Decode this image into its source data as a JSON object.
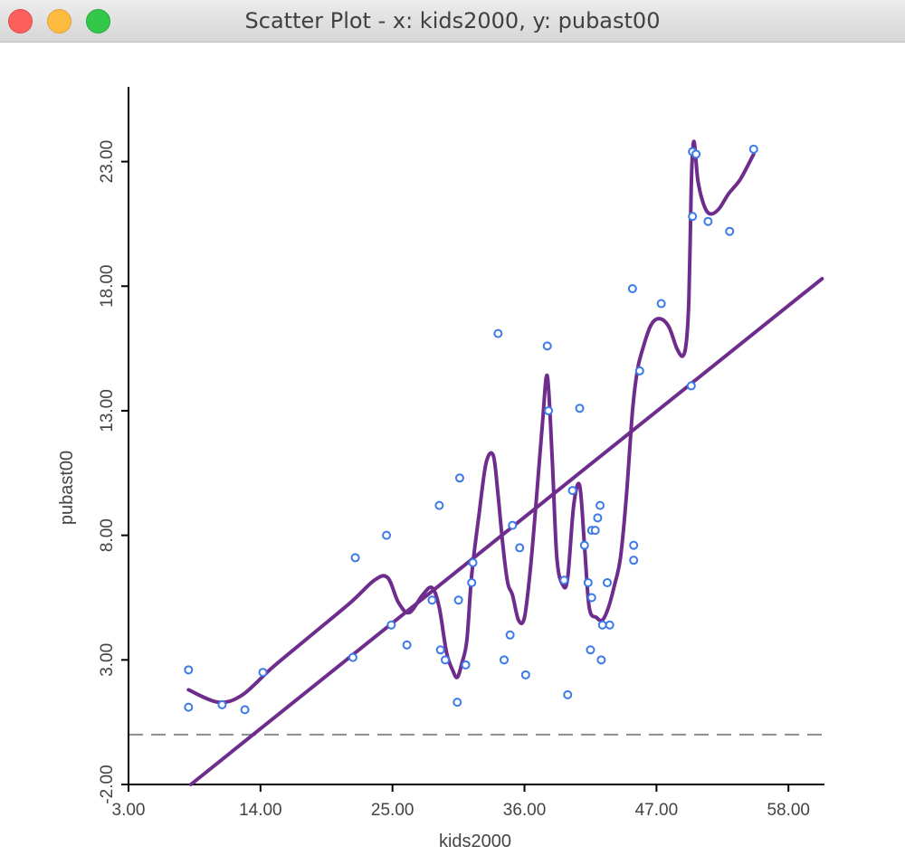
{
  "window": {
    "title": "Scatter Plot - x: kids2000, y: pubast00"
  },
  "colors": {
    "points": "#3b7ae8",
    "lowess": "#6e2c8c",
    "regression": "#6e2c8c",
    "zero_line": "#8c8c8c",
    "axis": "#000000"
  },
  "chart_data": {
    "type": "scatter",
    "xlabel": "kids2000",
    "ylabel": "pubast00",
    "xlim": [
      3.0,
      61.0
    ],
    "ylim": [
      -2.0,
      26.0
    ],
    "x_ticks": [
      3.0,
      14.0,
      25.0,
      36.0,
      47.0,
      58.0
    ],
    "x_tick_labels": [
      "3.00",
      "14.00",
      "25.00",
      "36.00",
      "47.00",
      "58.00"
    ],
    "y_ticks": [
      -2.0,
      3.0,
      8.0,
      13.0,
      18.0,
      23.0
    ],
    "y_tick_labels": [
      "-2.00",
      "3.00",
      "8.00",
      "13.00",
      "18.00",
      "23.00"
    ],
    "grid": false,
    "reference_line_y": 0.0,
    "points": {
      "x": [
        8.0,
        8.0,
        10.8,
        12.7,
        14.2,
        21.7,
        21.9,
        24.5,
        24.9,
        26.2,
        28.3,
        28.9,
        29.0,
        29.4,
        30.4,
        30.5,
        30.6,
        31.1,
        31.6,
        31.7,
        33.8,
        34.3,
        34.8,
        35.0,
        35.6,
        36.1,
        37.9,
        38.0,
        39.3,
        39.6,
        40.0,
        40.6,
        41.0,
        41.3,
        41.5,
        41.6,
        41.6,
        41.9,
        42.1,
        42.3,
        42.4,
        42.5,
        42.9,
        43.1,
        45.0,
        45.1,
        45.1,
        45.6,
        47.4,
        49.9,
        50.0,
        50.0,
        50.3,
        51.3,
        53.1,
        55.1
      ],
      "y": [
        2.6,
        1.1,
        1.2,
        1.0,
        2.5,
        3.1,
        7.1,
        8.0,
        4.4,
        3.6,
        5.4,
        9.2,
        3.4,
        3.0,
        1.3,
        5.4,
        10.3,
        2.8,
        6.1,
        6.9,
        16.1,
        3.0,
        4.0,
        8.4,
        7.5,
        2.4,
        15.6,
        13.0,
        6.2,
        1.6,
        9.8,
        13.1,
        7.6,
        6.1,
        3.4,
        5.5,
        8.2,
        8.2,
        8.7,
        9.2,
        3.0,
        4.4,
        6.1,
        4.4,
        17.9,
        7.6,
        7.0,
        14.6,
        17.3,
        14.0,
        20.8,
        23.4,
        23.3,
        20.6,
        20.2,
        23.5
      ]
    },
    "regression_line": {
      "x": [
        8.2,
        60.8
      ],
      "y": [
        -2.0,
        18.3
      ]
    },
    "lowess_curve": {
      "x": [
        8.0,
        10.5,
        12.5,
        15.0,
        18.0,
        21.5,
        23.5,
        24.6,
        25.5,
        26.4,
        27.5,
        28.3,
        28.9,
        29.5,
        30.0,
        30.4,
        30.8,
        31.2,
        31.6,
        32.2,
        32.8,
        33.4,
        33.8,
        34.2,
        34.6,
        35.0,
        35.5,
        36.0,
        36.5,
        37.0,
        37.5,
        37.9,
        38.3,
        38.7,
        39.2,
        39.6,
        40.1,
        40.6,
        41.0,
        41.4,
        42.0,
        42.5,
        43.0,
        43.5,
        44.0,
        44.5,
        45.0,
        45.4,
        45.8,
        46.5,
        47.2,
        48.0,
        48.7,
        49.2,
        49.5,
        49.7,
        49.9,
        50.0,
        50.1,
        50.2,
        50.3,
        50.5,
        51.0,
        51.5,
        52.2,
        53.0,
        54.0,
        55.1
      ],
      "y": [
        1.8,
        1.3,
        1.6,
        2.7,
        3.9,
        5.3,
        6.2,
        6.3,
        5.3,
        4.9,
        5.6,
        5.9,
        5.1,
        3.3,
        2.6,
        2.3,
        2.9,
        3.8,
        6.4,
        8.8,
        10.9,
        11.2,
        9.6,
        7.6,
        6.1,
        5.6,
        4.6,
        4.7,
        6.7,
        9.5,
        12.5,
        14.4,
        11.2,
        7.1,
        6.0,
        6.3,
        9.2,
        10.0,
        7.6,
        5.1,
        4.7,
        4.6,
        5.1,
        6.0,
        7.1,
        9.6,
        13.0,
        14.6,
        15.4,
        16.4,
        16.7,
        16.4,
        15.5,
        15.2,
        15.8,
        17.5,
        22.0,
        23.3,
        23.8,
        23.6,
        23.0,
        22.1,
        21.2,
        20.9,
        21.1,
        21.7,
        22.3,
        23.3
      ]
    }
  }
}
